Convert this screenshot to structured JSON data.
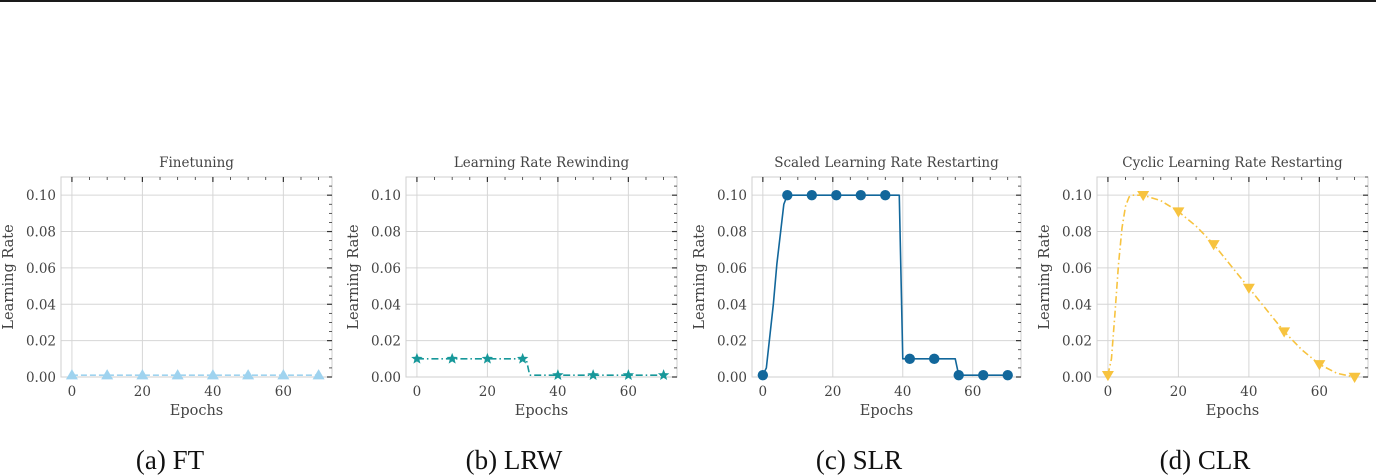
{
  "figure": {
    "captions": [
      "(a) FT",
      "(b) LRW",
      "(c) SLR",
      "(d) CLR"
    ]
  },
  "chart_data": [
    {
      "type": "line",
      "title": "Finetuning",
      "xlabel": "Epochs",
      "ylabel": "Learning Rate",
      "xticks": [
        0,
        20,
        40,
        60
      ],
      "yticks": [
        "0.00",
        "0.02",
        "0.04",
        "0.06",
        "0.08",
        "0.10"
      ],
      "xlim": [
        -3.1,
        73.8
      ],
      "ylim": [
        0,
        0.11
      ],
      "grid": true,
      "series": [
        {
          "name": "FT",
          "color": "#9fd3ef",
          "linestyle": "dashed",
          "marker": "triangle-up",
          "line": {
            "x": [
              0,
              70
            ],
            "y": [
              0.001,
              0.001
            ]
          },
          "markers": {
            "x": [
              0,
              10,
              20,
              30,
              40,
              50,
              60,
              70
            ],
            "y": [
              0.001,
              0.001,
              0.001,
              0.001,
              0.001,
              0.001,
              0.001,
              0.001
            ]
          }
        }
      ]
    },
    {
      "type": "line",
      "title": "Learning Rate Rewinding",
      "xlabel": "Epochs",
      "ylabel": "Learning Rate",
      "xticks": [
        0,
        20,
        40,
        60
      ],
      "yticks": [
        "0.00",
        "0.02",
        "0.04",
        "0.06",
        "0.08",
        "0.10"
      ],
      "xlim": [
        -3.1,
        73.8
      ],
      "ylim": [
        0,
        0.11
      ],
      "grid": true,
      "series": [
        {
          "name": "LRW",
          "color": "#17989a",
          "linestyle": "dashdot",
          "marker": "star",
          "line": {
            "x": [
              0,
              30,
              31,
              32,
              70
            ],
            "y": [
              0.01,
              0.01,
              0.01,
              0.001,
              0.001
            ]
          },
          "markers": {
            "x": [
              0,
              10,
              20,
              30,
              40,
              50,
              60,
              70
            ],
            "y": [
              0.01,
              0.01,
              0.01,
              0.01,
              0.001,
              0.001,
              0.001,
              0.001
            ]
          }
        }
      ]
    },
    {
      "type": "line",
      "title": "Scaled Learning Rate Restarting",
      "xlabel": "Epochs",
      "ylabel": "Learning Rate",
      "xticks": [
        0,
        20,
        40,
        60
      ],
      "yticks": [
        "0.00",
        "0.02",
        "0.04",
        "0.06",
        "0.08",
        "0.10"
      ],
      "xlim": [
        -3.1,
        73.8
      ],
      "ylim": [
        0,
        0.11
      ],
      "grid": true,
      "series": [
        {
          "name": "SLR",
          "color": "#12679b",
          "linestyle": "solid",
          "marker": "circle",
          "line": {
            "x": [
              0,
              1,
              3,
              4,
              6,
              7,
              39,
              40,
              55,
              56,
              70
            ],
            "y": [
              0.001,
              0.005,
              0.04,
              0.062,
              0.095,
              0.1,
              0.1,
              0.01,
              0.01,
              0.001,
              0.001
            ]
          },
          "markers": {
            "x": [
              0,
              7,
              14,
              21,
              28,
              35,
              42,
              49,
              56,
              63,
              70
            ],
            "y": [
              0.001,
              0.1,
              0.1,
              0.1,
              0.1,
              0.1,
              0.01,
              0.01,
              0.001,
              0.001,
              0.001
            ]
          }
        }
      ]
    },
    {
      "type": "line",
      "title": "Cyclic Learning Rate Restarting",
      "xlabel": "Epochs",
      "ylabel": "Learning Rate",
      "xticks": [
        0,
        20,
        40,
        60
      ],
      "yticks": [
        "0.00",
        "0.02",
        "0.04",
        "0.06",
        "0.08",
        "0.10"
      ],
      "xlim": [
        -3.1,
        73.8
      ],
      "ylim": [
        0,
        0.11
      ],
      "grid": true,
      "series": [
        {
          "name": "CLR",
          "color": "#f7c33f",
          "linestyle": "dashdot",
          "marker": "triangle-down",
          "line": {
            "x": [
              0,
              1,
              2,
              3,
              4,
              5,
              6,
              7,
              8,
              10,
              15,
              20,
              25,
              30,
              35,
              40,
              45,
              50,
              55,
              60,
              65,
              70
            ],
            "y": [
              0.001,
              0.01,
              0.035,
              0.062,
              0.082,
              0.094,
              0.099,
              0.1,
              0.1,
              0.1,
              0.097,
              0.091,
              0.083,
              0.073,
              0.061,
              0.049,
              0.037,
              0.025,
              0.015,
              0.007,
              0.002,
              0.0
            ]
          },
          "markers": {
            "x": [
              0,
              10,
              20,
              30,
              40,
              50,
              60,
              70
            ],
            "y": [
              0.001,
              0.1,
              0.091,
              0.073,
              0.049,
              0.025,
              0.007,
              0.0
            ]
          }
        }
      ]
    }
  ]
}
